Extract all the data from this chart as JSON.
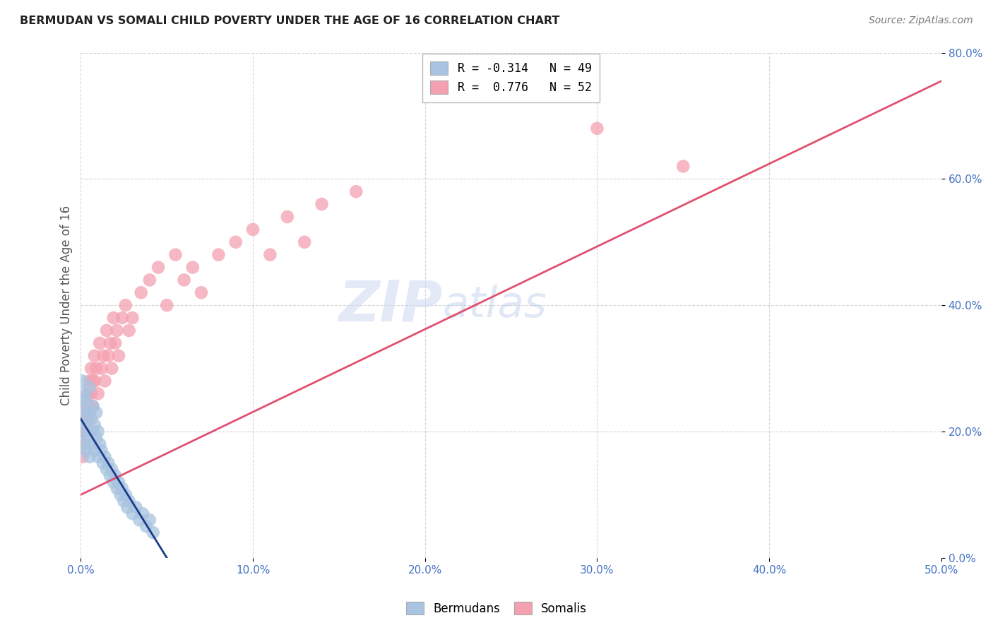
{
  "title": "BERMUDAN VS SOMALI CHILD POVERTY UNDER THE AGE OF 16 CORRELATION CHART",
  "source": "Source: ZipAtlas.com",
  "ylabel": "Child Poverty Under the Age of 16",
  "xlim": [
    0.0,
    0.5
  ],
  "ylim": [
    0.0,
    0.8
  ],
  "xticks": [
    0.0,
    0.1,
    0.2,
    0.3,
    0.4,
    0.5
  ],
  "yticks": [
    0.0,
    0.2,
    0.4,
    0.6,
    0.8
  ],
  "xtick_labels": [
    "0.0%",
    "10.0%",
    "20.0%",
    "30.0%",
    "40.0%",
    "50.0%"
  ],
  "ytick_labels": [
    "0.0%",
    "20.0%",
    "40.0%",
    "60.0%",
    "80.0%"
  ],
  "background_color": "#ffffff",
  "grid_color": "#cccccc",
  "bermudans_color": "#a8c4e0",
  "somalis_color": "#f4a0b0",
  "bermudans_line_color": "#1a3a8a",
  "somalis_line_color": "#e05070",
  "bermudans_R": -0.314,
  "bermudans_N": 49,
  "somalis_R": 0.776,
  "somalis_N": 52,
  "legend_label_bermudans": "Bermudans",
  "legend_label_somalis": "Somalis",
  "watermark_zip": "ZIP",
  "watermark_atlas": "atlas",
  "bermudans_x": [
    0.001,
    0.001,
    0.001,
    0.002,
    0.002,
    0.002,
    0.003,
    0.003,
    0.003,
    0.004,
    0.004,
    0.005,
    0.005,
    0.005,
    0.006,
    0.006,
    0.007,
    0.007,
    0.008,
    0.008,
    0.009,
    0.009,
    0.01,
    0.01,
    0.011,
    0.012,
    0.013,
    0.014,
    0.015,
    0.016,
    0.017,
    0.018,
    0.019,
    0.02,
    0.021,
    0.022,
    0.023,
    0.024,
    0.025,
    0.026,
    0.027,
    0.028,
    0.03,
    0.032,
    0.034,
    0.036,
    0.038,
    0.04,
    0.042
  ],
  "bermudans_y": [
    0.28,
    0.24,
    0.2,
    0.26,
    0.22,
    0.18,
    0.25,
    0.21,
    0.17,
    0.23,
    0.19,
    0.27,
    0.23,
    0.16,
    0.22,
    0.18,
    0.24,
    0.2,
    0.21,
    0.17,
    0.23,
    0.19,
    0.2,
    0.16,
    0.18,
    0.17,
    0.15,
    0.16,
    0.14,
    0.15,
    0.13,
    0.14,
    0.12,
    0.13,
    0.11,
    0.12,
    0.1,
    0.11,
    0.09,
    0.1,
    0.08,
    0.09,
    0.07,
    0.08,
    0.06,
    0.07,
    0.05,
    0.06,
    0.04
  ],
  "somalis_x": [
    0.001,
    0.001,
    0.002,
    0.002,
    0.003,
    0.003,
    0.004,
    0.004,
    0.005,
    0.005,
    0.006,
    0.006,
    0.007,
    0.007,
    0.008,
    0.008,
    0.009,
    0.01,
    0.011,
    0.012,
    0.013,
    0.014,
    0.015,
    0.016,
    0.017,
    0.018,
    0.019,
    0.02,
    0.021,
    0.022,
    0.024,
    0.026,
    0.028,
    0.03,
    0.035,
    0.04,
    0.045,
    0.05,
    0.055,
    0.06,
    0.065,
    0.07,
    0.08,
    0.09,
    0.1,
    0.11,
    0.12,
    0.13,
    0.14,
    0.16,
    0.3,
    0.35
  ],
  "somalis_y": [
    0.2,
    0.16,
    0.22,
    0.18,
    0.24,
    0.2,
    0.26,
    0.22,
    0.28,
    0.24,
    0.3,
    0.26,
    0.28,
    0.24,
    0.32,
    0.28,
    0.3,
    0.26,
    0.34,
    0.3,
    0.32,
    0.28,
    0.36,
    0.32,
    0.34,
    0.3,
    0.38,
    0.34,
    0.36,
    0.32,
    0.38,
    0.4,
    0.36,
    0.38,
    0.42,
    0.44,
    0.46,
    0.4,
    0.48,
    0.44,
    0.46,
    0.42,
    0.48,
    0.5,
    0.52,
    0.48,
    0.54,
    0.5,
    0.56,
    0.58,
    0.68,
    0.62
  ],
  "somali_line_x0": 0.0,
  "somali_line_y0": 0.1,
  "somali_line_x1": 0.5,
  "somali_line_y1": 0.755,
  "bermudan_line_x0": 0.0,
  "bermudan_line_y0": 0.22,
  "bermudan_line_x1": 0.05,
  "bermudan_line_y1": 0.0
}
